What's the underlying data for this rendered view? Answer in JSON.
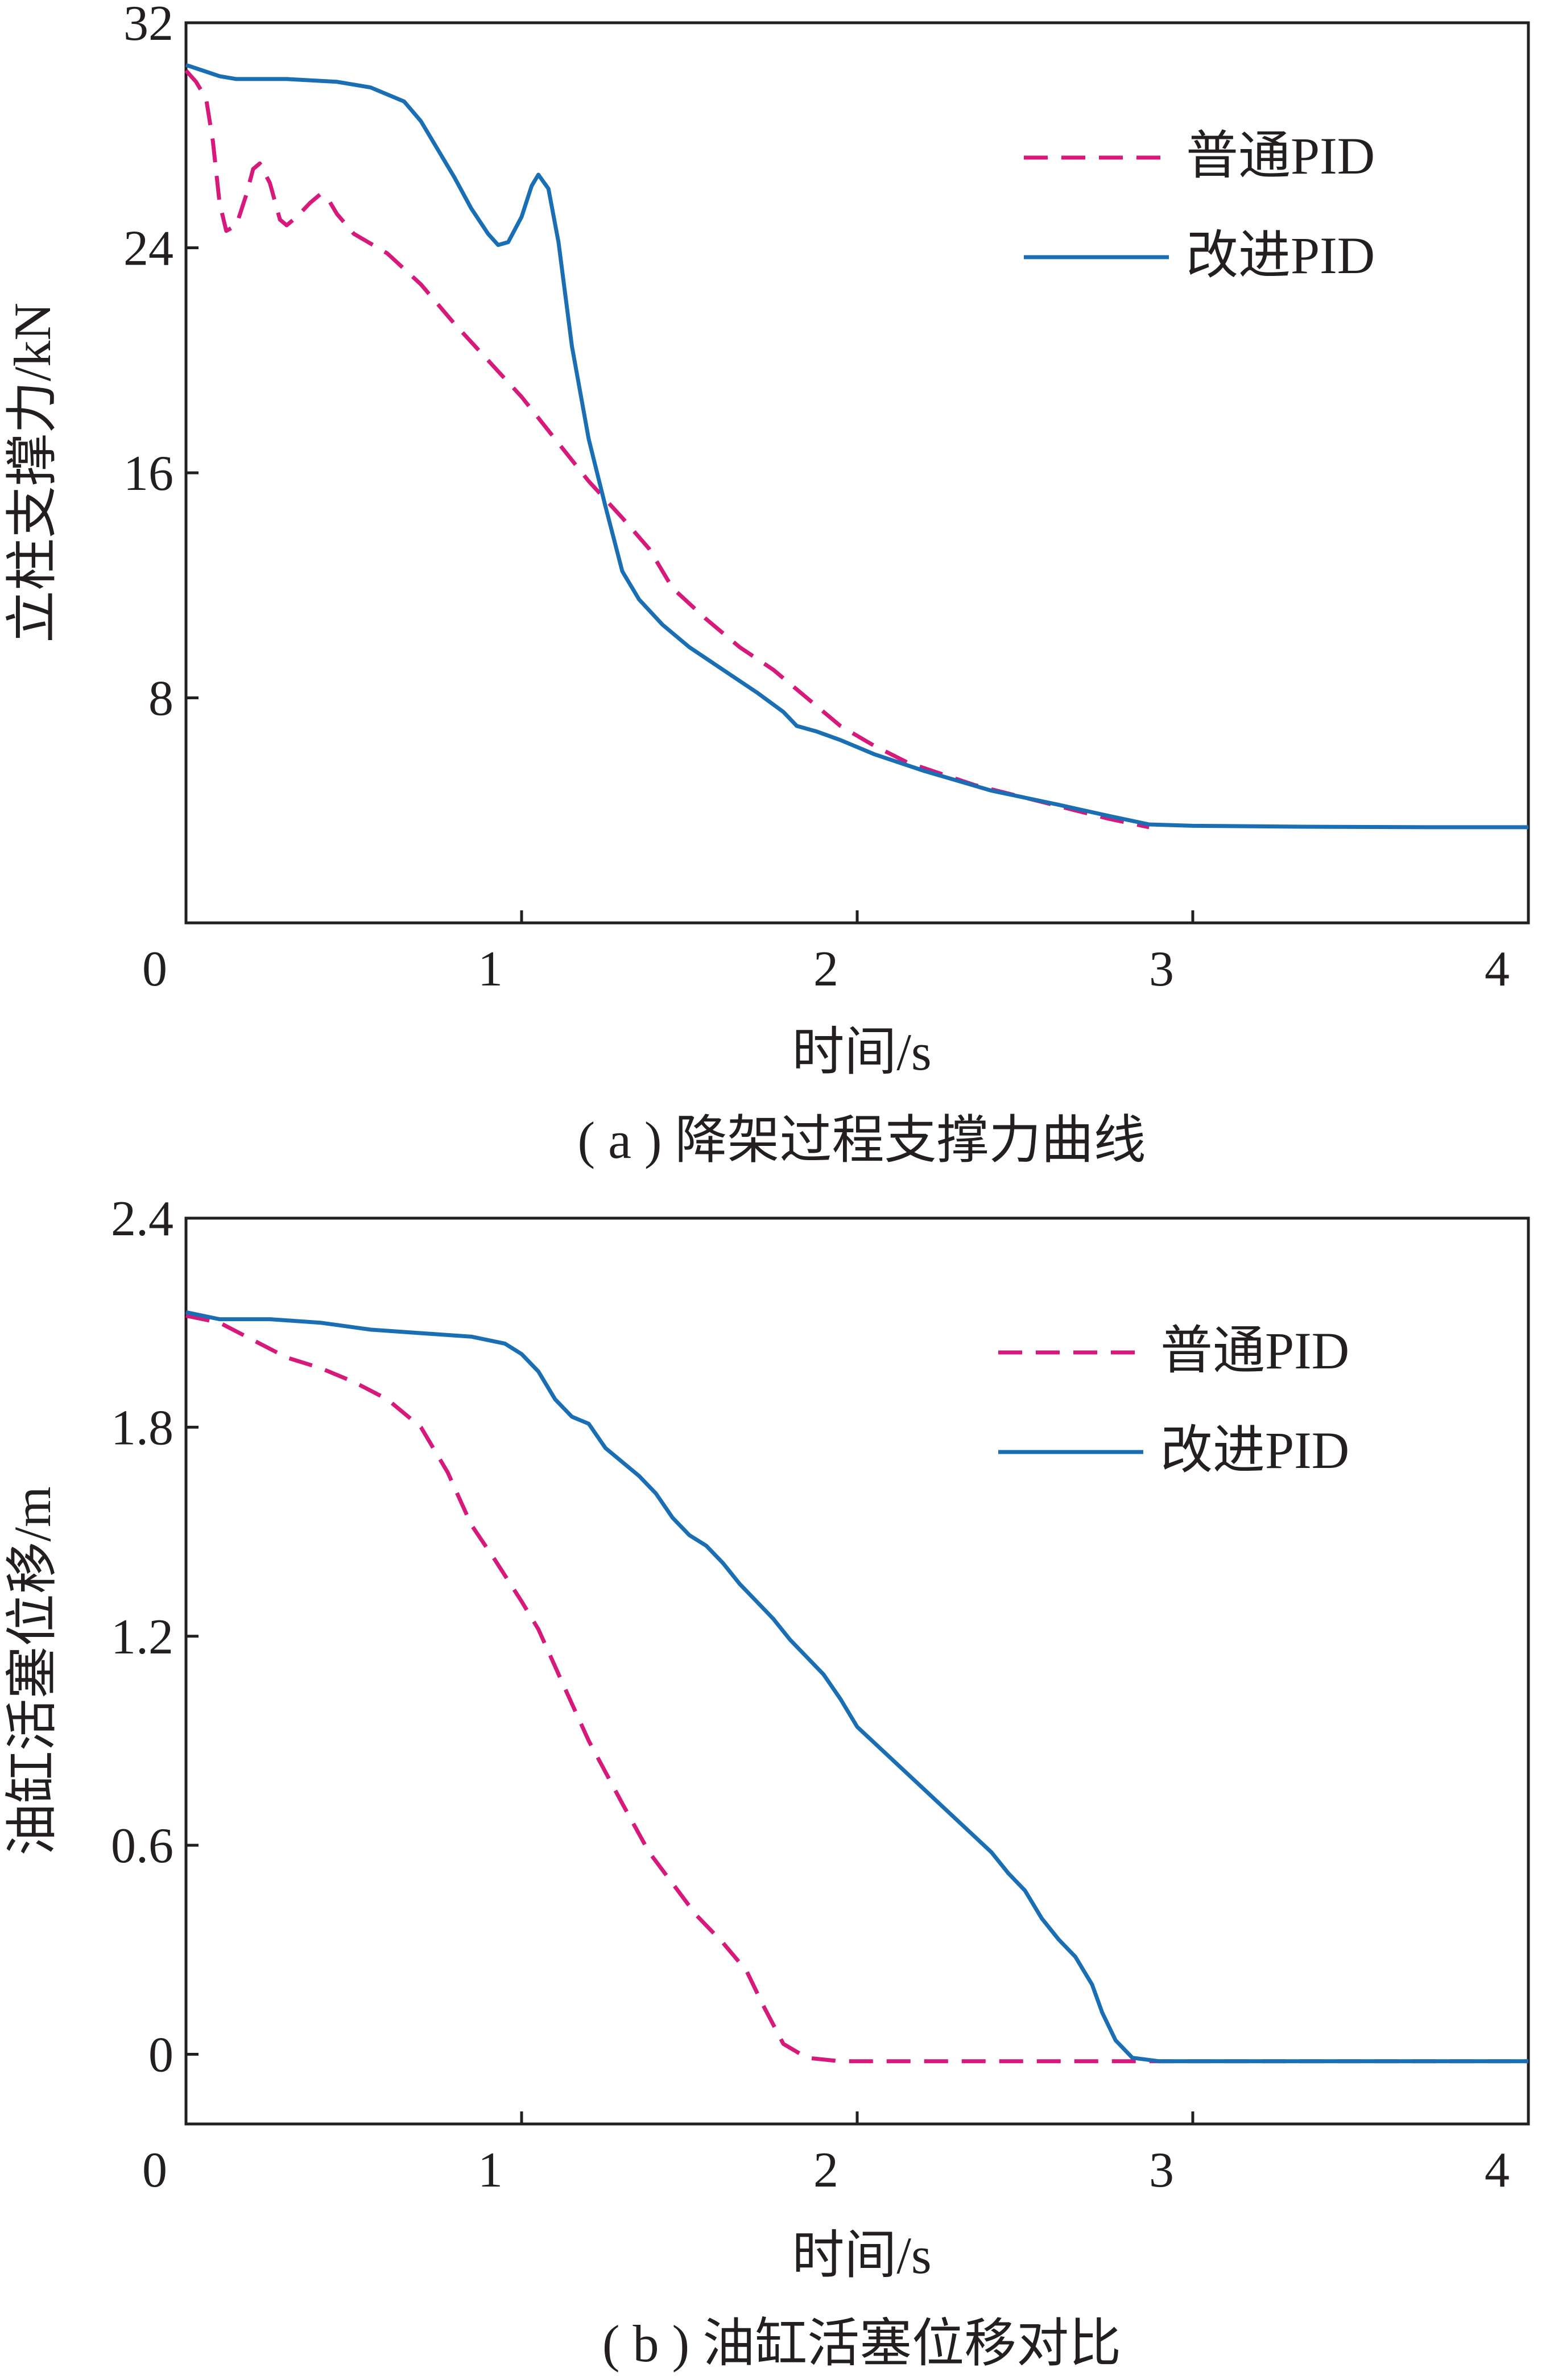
{
  "colors": {
    "normal_pid": "#d6197a",
    "improved_pid": "#1a6fb4",
    "axis": "#231f20"
  },
  "chart_data": [
    {
      "type": "line",
      "caption": "( a ) 降架过程支撑力曲线",
      "xlabel": "时间/s",
      "ylabel": "立柱支撑力/kN",
      "xlim": [
        0,
        4
      ],
      "ylim": [
        0,
        32
      ],
      "xticks": [
        "0",
        "1",
        "2",
        "3",
        "4"
      ],
      "yticks": [
        "8",
        "16",
        "24",
        "32"
      ],
      "grid": false,
      "legend_position": "top-right",
      "series": [
        {
          "name": "普通PID",
          "style": "dashed",
          "color": "#d6197a",
          "points": [
            [
              0.0,
              30.3
            ],
            [
              0.03,
              29.9
            ],
            [
              0.06,
              29.3
            ],
            [
              0.08,
              27.8
            ],
            [
              0.1,
              25.6
            ],
            [
              0.12,
              24.6
            ],
            [
              0.15,
              24.8
            ],
            [
              0.18,
              25.9
            ],
            [
              0.2,
              26.8
            ],
            [
              0.22,
              27.0
            ],
            [
              0.25,
              26.3
            ],
            [
              0.28,
              25.0
            ],
            [
              0.3,
              24.8
            ],
            [
              0.33,
              25.1
            ],
            [
              0.37,
              25.6
            ],
            [
              0.4,
              25.9
            ],
            [
              0.42,
              25.8
            ],
            [
              0.45,
              25.2
            ],
            [
              0.5,
              24.5
            ],
            [
              0.6,
              23.8
            ],
            [
              0.7,
              22.7
            ],
            [
              0.8,
              21.3
            ],
            [
              0.9,
              20.0
            ],
            [
              1.0,
              18.7
            ],
            [
              1.1,
              17.2
            ],
            [
              1.2,
              15.7
            ],
            [
              1.3,
              14.4
            ],
            [
              1.38,
              13.3
            ],
            [
              1.45,
              11.9
            ],
            [
              1.55,
              10.8
            ],
            [
              1.65,
              9.8
            ],
            [
              1.75,
              9.0
            ],
            [
              1.85,
              8.0
            ],
            [
              1.95,
              7.0
            ],
            [
              2.05,
              6.3
            ],
            [
              2.15,
              5.7
            ],
            [
              2.25,
              5.3
            ],
            [
              2.35,
              4.9
            ],
            [
              2.45,
              4.6
            ],
            [
              2.55,
              4.3
            ],
            [
              2.65,
              4.0
            ],
            [
              2.75,
              3.7
            ],
            [
              2.83,
              3.5
            ],
            [
              2.87,
              3.4
            ]
          ]
        },
        {
          "name": "改进PID",
          "style": "solid",
          "color": "#1a6fb4",
          "points": [
            [
              0.0,
              30.5
            ],
            [
              0.05,
              30.3
            ],
            [
              0.1,
              30.1
            ],
            [
              0.15,
              30.0
            ],
            [
              0.3,
              30.0
            ],
            [
              0.45,
              29.9
            ],
            [
              0.55,
              29.7
            ],
            [
              0.65,
              29.2
            ],
            [
              0.7,
              28.5
            ],
            [
              0.74,
              27.7
            ],
            [
              0.8,
              26.5
            ],
            [
              0.85,
              25.4
            ],
            [
              0.9,
              24.5
            ],
            [
              0.93,
              24.1
            ],
            [
              0.96,
              24.2
            ],
            [
              1.0,
              25.1
            ],
            [
              1.03,
              26.2
            ],
            [
              1.05,
              26.6
            ],
            [
              1.08,
              26.1
            ],
            [
              1.11,
              24.2
            ],
            [
              1.15,
              20.5
            ],
            [
              1.2,
              17.2
            ],
            [
              1.25,
              14.8
            ],
            [
              1.3,
              12.5
            ],
            [
              1.35,
              11.5
            ],
            [
              1.42,
              10.6
            ],
            [
              1.5,
              9.8
            ],
            [
              1.6,
              9.0
            ],
            [
              1.7,
              8.2
            ],
            [
              1.78,
              7.5
            ],
            [
              1.82,
              7.0
            ],
            [
              1.88,
              6.8
            ],
            [
              1.95,
              6.5
            ],
            [
              2.05,
              6.0
            ],
            [
              2.2,
              5.4
            ],
            [
              2.4,
              4.7
            ],
            [
              2.6,
              4.2
            ],
            [
              2.75,
              3.8
            ],
            [
              2.87,
              3.5
            ],
            [
              3.0,
              3.45
            ],
            [
              3.3,
              3.42
            ],
            [
              3.7,
              3.4
            ],
            [
              4.0,
              3.4
            ]
          ]
        }
      ]
    },
    {
      "type": "line",
      "caption": "( b ) 油缸活塞位移对比",
      "xlabel": "时间/s",
      "ylabel": "油缸活塞位移/m",
      "xlim": [
        0,
        4
      ],
      "ylim": [
        -0.2,
        2.4
      ],
      "xticks": [
        "0",
        "1",
        "2",
        "3",
        "4"
      ],
      "yticks": [
        "0",
        "0.6",
        "1.2",
        "1.8",
        "2.4"
      ],
      "grid": false,
      "legend_position": "top-right",
      "series": [
        {
          "name": "普通PID",
          "style": "dashed",
          "color": "#d6197a",
          "points": [
            [
              0.0,
              2.12
            ],
            [
              0.1,
              2.1
            ],
            [
              0.2,
              2.05
            ],
            [
              0.3,
              2.0
            ],
            [
              0.4,
              1.97
            ],
            [
              0.5,
              1.93
            ],
            [
              0.6,
              1.88
            ],
            [
              0.7,
              1.8
            ],
            [
              0.78,
              1.67
            ],
            [
              0.85,
              1.52
            ],
            [
              0.92,
              1.42
            ],
            [
              1.0,
              1.3
            ],
            [
              1.05,
              1.22
            ],
            [
              1.12,
              1.07
            ],
            [
              1.2,
              0.9
            ],
            [
              1.3,
              0.72
            ],
            [
              1.38,
              0.58
            ],
            [
              1.45,
              0.49
            ],
            [
              1.52,
              0.4
            ],
            [
              1.6,
              0.32
            ],
            [
              1.67,
              0.24
            ],
            [
              1.72,
              0.14
            ],
            [
              1.78,
              0.03
            ],
            [
              1.85,
              -0.01
            ],
            [
              1.95,
              -0.02
            ],
            [
              2.2,
              -0.02
            ],
            [
              3.0,
              -0.02
            ],
            [
              4.0,
              -0.02
            ]
          ]
        },
        {
          "name": "改进PID",
          "style": "solid",
          "color": "#1a6fb4",
          "points": [
            [
              0.0,
              2.13
            ],
            [
              0.1,
              2.11
            ],
            [
              0.25,
              2.11
            ],
            [
              0.4,
              2.1
            ],
            [
              0.55,
              2.08
            ],
            [
              0.7,
              2.07
            ],
            [
              0.85,
              2.06
            ],
            [
              0.95,
              2.04
            ],
            [
              1.0,
              2.01
            ],
            [
              1.05,
              1.96
            ],
            [
              1.1,
              1.88
            ],
            [
              1.15,
              1.83
            ],
            [
              1.2,
              1.81
            ],
            [
              1.25,
              1.74
            ],
            [
              1.3,
              1.7
            ],
            [
              1.35,
              1.66
            ],
            [
              1.4,
              1.61
            ],
            [
              1.45,
              1.54
            ],
            [
              1.5,
              1.49
            ],
            [
              1.55,
              1.46
            ],
            [
              1.6,
              1.41
            ],
            [
              1.65,
              1.35
            ],
            [
              1.7,
              1.3
            ],
            [
              1.75,
              1.25
            ],
            [
              1.8,
              1.19
            ],
            [
              1.85,
              1.14
            ],
            [
              1.9,
              1.09
            ],
            [
              1.95,
              1.02
            ],
            [
              2.0,
              0.94
            ],
            [
              2.1,
              0.85
            ],
            [
              2.2,
              0.76
            ],
            [
              2.3,
              0.67
            ],
            [
              2.4,
              0.58
            ],
            [
              2.45,
              0.52
            ],
            [
              2.5,
              0.47
            ],
            [
              2.55,
              0.39
            ],
            [
              2.6,
              0.33
            ],
            [
              2.65,
              0.28
            ],
            [
              2.7,
              0.2
            ],
            [
              2.73,
              0.12
            ],
            [
              2.77,
              0.04
            ],
            [
              2.82,
              -0.01
            ],
            [
              2.9,
              -0.02
            ],
            [
              3.2,
              -0.02
            ],
            [
              4.0,
              -0.02
            ]
          ]
        }
      ]
    }
  ]
}
